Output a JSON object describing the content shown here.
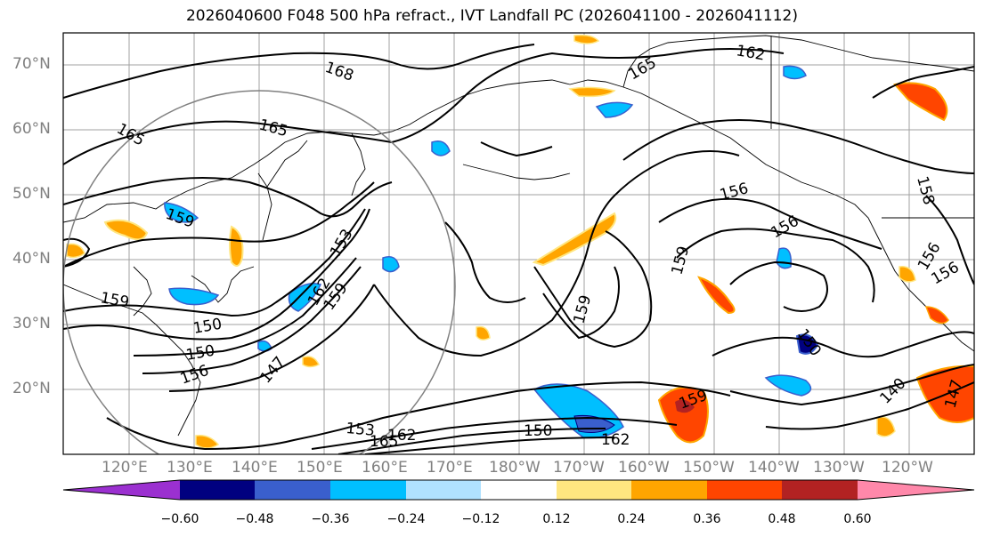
{
  "title": "2026040600 F048 500 hPa refract., IVT Landfall PC (2026041100 - 2026041112)",
  "map": {
    "lat_labels": [
      "70°N",
      "60°N",
      "50°N",
      "40°N",
      "30°N",
      "20°N"
    ],
    "lon_labels": [
      "120°E",
      "130°E",
      "140°E",
      "150°E",
      "160°E",
      "170°E",
      "180°W",
      "170°W",
      "160°W",
      "150°W",
      "140°W",
      "130°W",
      "120°W"
    ],
    "contour_labels": [
      "168",
      "165",
      "165",
      "162",
      "165",
      "159",
      "159",
      "150",
      "150",
      "153",
      "162",
      "159",
      "156",
      "147",
      "153",
      "165",
      "162",
      "150",
      "162",
      "156",
      "156",
      "159",
      "159",
      "156",
      "156",
      "158",
      "150",
      "159",
      "140",
      "147"
    ]
  },
  "colorbar": {
    "colors": [
      "#9b30d0",
      "#000080",
      "#3a5fcd",
      "#00bfff",
      "#b0e2ff",
      "#ffffff",
      "#ffe680",
      "#ffa500",
      "#ff4500",
      "#b22222",
      "#ff88aa"
    ],
    "tick_labels": [
      "−0.60",
      "−0.48",
      "−0.36",
      "−0.24",
      "−0.12",
      "0.12",
      "0.24",
      "0.36",
      "0.48",
      "0.60"
    ]
  }
}
